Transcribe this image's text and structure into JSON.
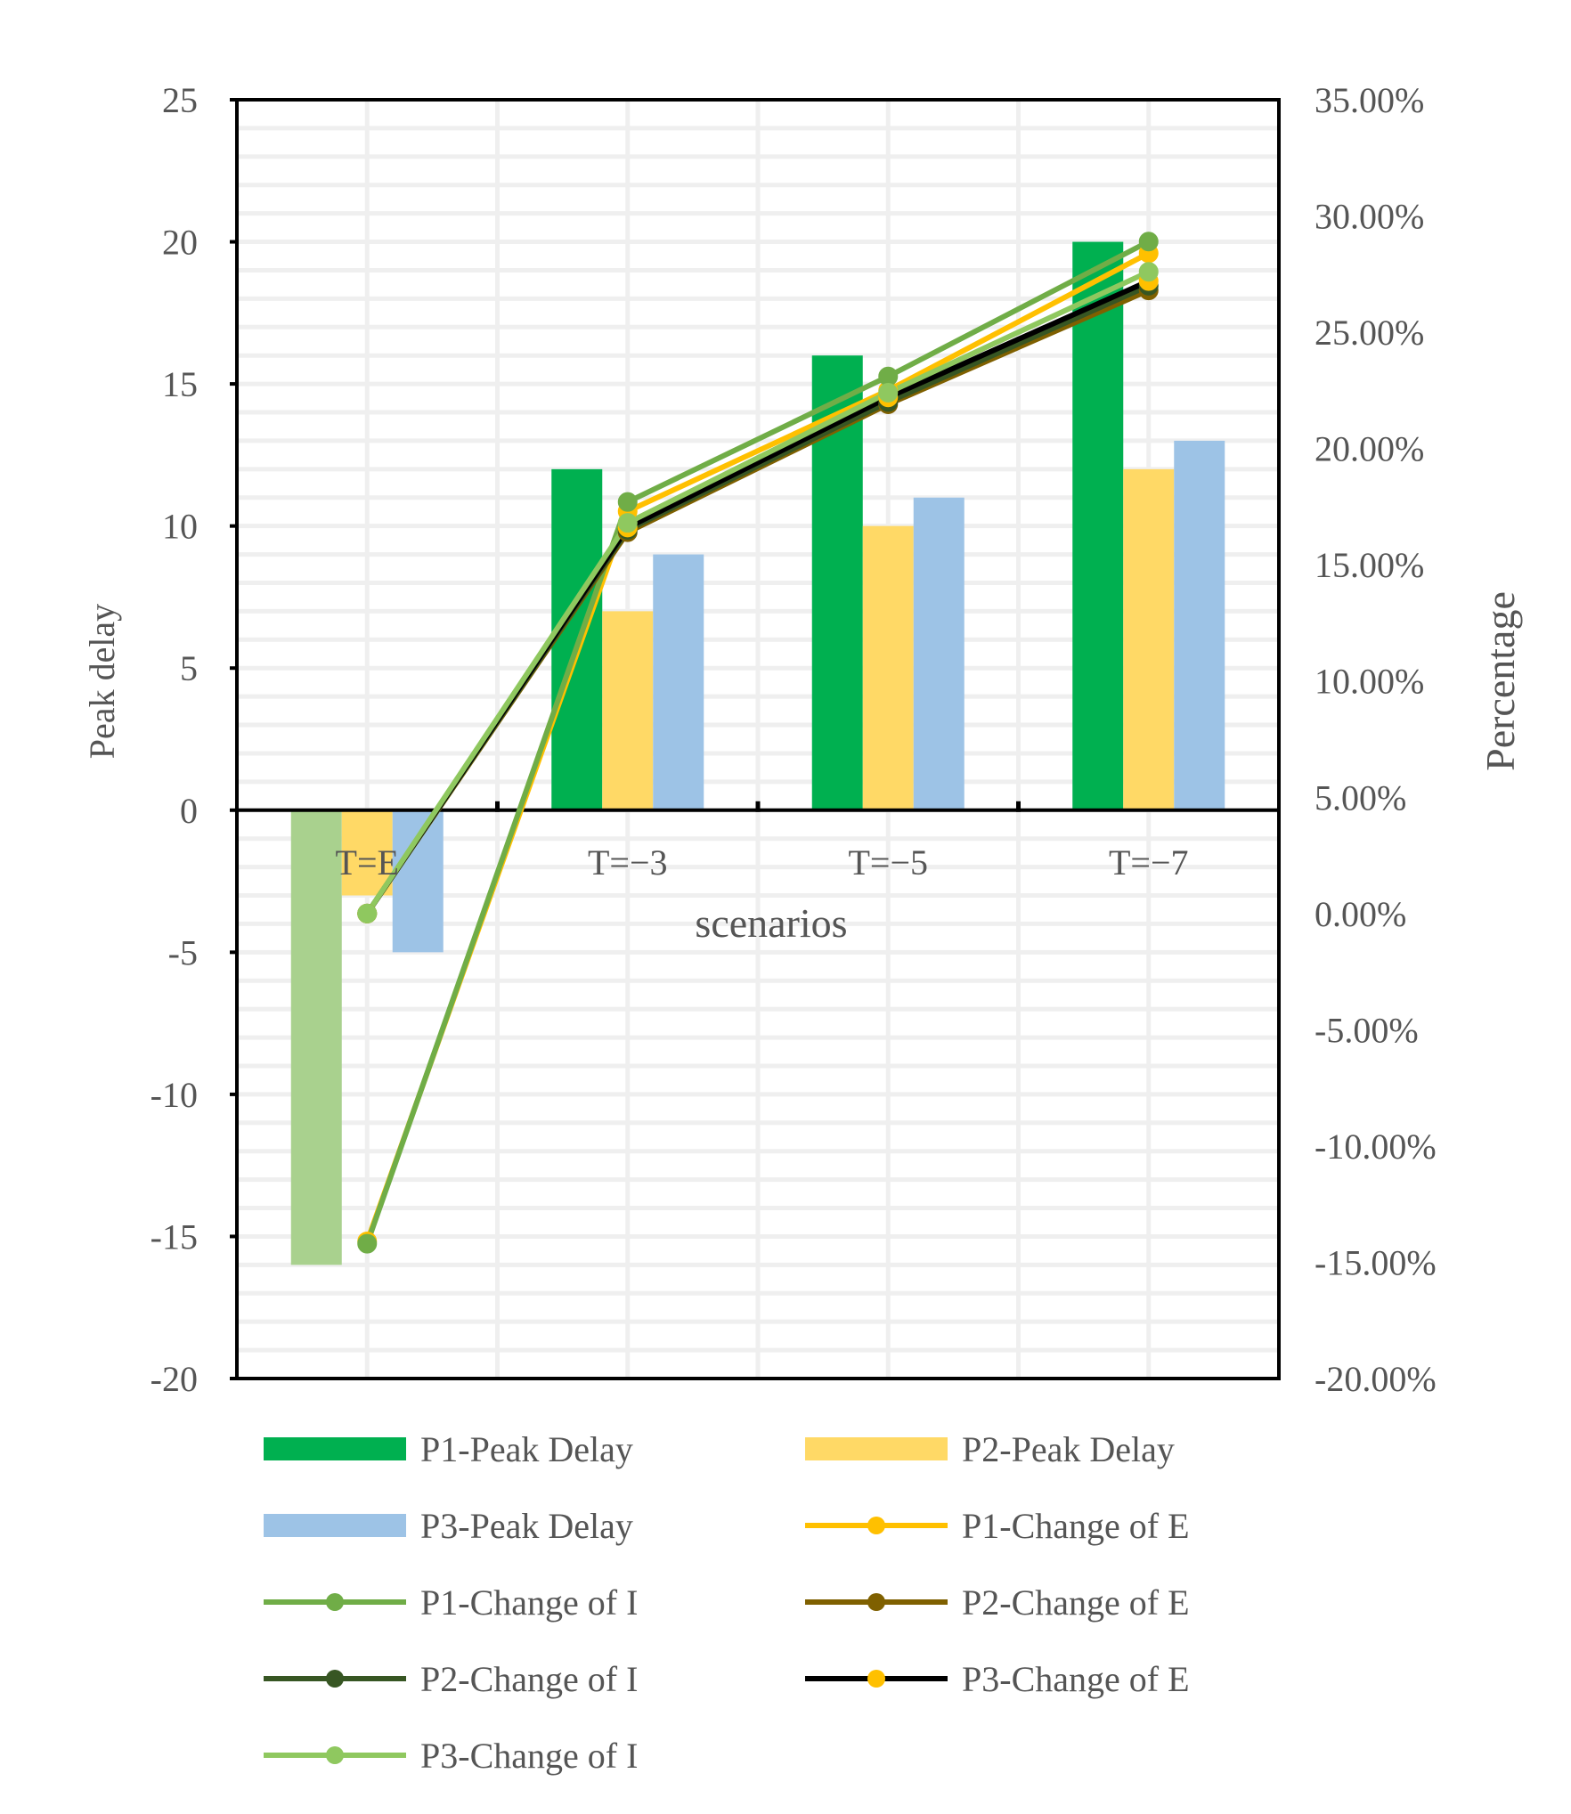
{
  "chart_data": {
    "type": "bar",
    "title": "",
    "xlabel": "scenarios",
    "ylabel": "Peak delay",
    "y2label": "Percentage",
    "categories": [
      "T=E",
      "T=−3",
      "T=−5",
      "T=−7"
    ],
    "ylim": [
      -20,
      25
    ],
    "yticks": [
      "25",
      "20",
      "15",
      "10",
      "5",
      "0",
      "-5",
      "-10",
      "-15",
      "-20"
    ],
    "y2lim": [
      -0.2,
      0.35
    ],
    "y2ticks": [
      "35.00%",
      "30.00%",
      "25.00%",
      "20.00%",
      "15.00%",
      "10.00%",
      "5.00%",
      "0.00%",
      "-5.00%",
      "-10.00%",
      "-15.00%",
      "-20.00%"
    ],
    "bar_series": [
      {
        "name": "P1-Peak Delay",
        "color": "#00b050",
        "values": [
          -16,
          12,
          16,
          20
        ]
      },
      {
        "name": "P2-Peak Delay",
        "color": "#ffd966",
        "values": [
          -3,
          7,
          10,
          12
        ]
      },
      {
        "name": "P3-Peak Delay",
        "color": "#9dc3e6",
        "values": [
          -5,
          9,
          11,
          13
        ]
      }
    ],
    "bar_override_colors": [
      {
        "series": 0,
        "index": 0,
        "color": "#a9d18e"
      }
    ],
    "line_series": [
      {
        "name": "P1-Change of E",
        "color": "#ffc000",
        "marker": "#ffc000",
        "values": [
          -0.141,
          0.173,
          0.225,
          0.284
        ]
      },
      {
        "name": "P1-Change of I",
        "color": "#70ad47",
        "marker": "#70ad47",
        "values": [
          -0.142,
          0.177,
          0.231,
          0.289
        ]
      },
      {
        "name": "P2-Change of E",
        "color": "#7f6000",
        "marker": "#7f6000",
        "values": [
          0.0,
          0.164,
          0.219,
          0.268
        ]
      },
      {
        "name": "P2-Change of I",
        "color": "#375623",
        "marker": "#375623",
        "values": [
          0.0,
          0.165,
          0.22,
          0.27
        ]
      },
      {
        "name": "P3-Change of E",
        "color": "#000000",
        "marker": "#ffc000",
        "values": [
          0.0,
          0.166,
          0.222,
          0.272
        ]
      },
      {
        "name": "P3-Change of I",
        "color": "#8fc85f",
        "marker": "#8fc85f",
        "values": [
          0.0,
          0.168,
          0.224,
          0.276
        ]
      }
    ],
    "legend": {
      "position": "bottom",
      "entries": [
        {
          "name": "P1-Peak Delay",
          "kind": "bar",
          "color": "#00b050"
        },
        {
          "name": "P2-Peak Delay",
          "kind": "bar",
          "color": "#ffd966"
        },
        {
          "name": "P3-Peak Delay",
          "kind": "bar",
          "color": "#9dc3e6"
        },
        {
          "name": "P1-Change of E",
          "kind": "line",
          "color": "#ffc000",
          "marker": "#ffc000"
        },
        {
          "name": "P1-Change of I",
          "kind": "line",
          "color": "#70ad47",
          "marker": "#70ad47"
        },
        {
          "name": "P2-Change of E",
          "kind": "line",
          "color": "#7f6000",
          "marker": "#7f6000"
        },
        {
          "name": "P2-Change of I",
          "kind": "line",
          "color": "#375623",
          "marker": "#375623"
        },
        {
          "name": "P3-Change of E",
          "kind": "line",
          "color": "#000000",
          "marker": "#ffc000"
        },
        {
          "name": "P3-Change of I",
          "kind": "line",
          "color": "#8fc85f",
          "marker": "#8fc85f"
        }
      ]
    },
    "grid": true
  }
}
